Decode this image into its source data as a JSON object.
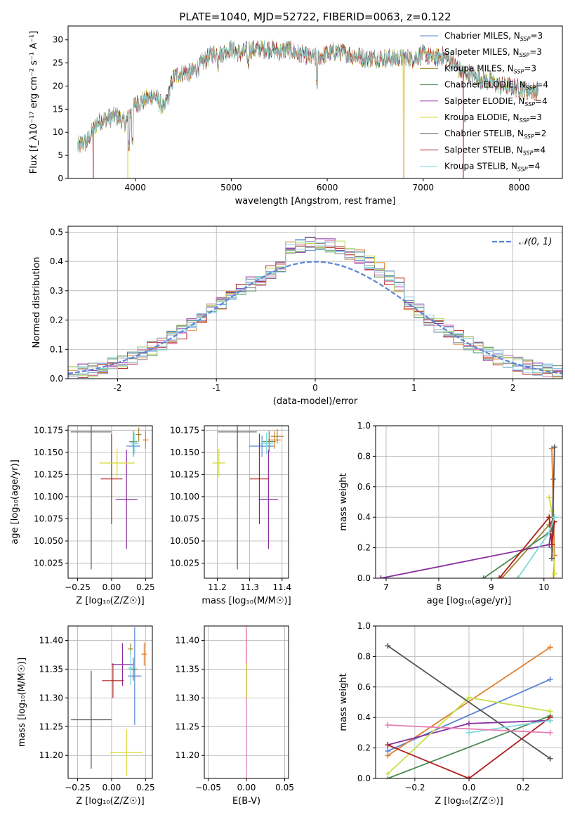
{
  "figure": {
    "title": "PLATE=1040, MJD=52722, FIBERID=0063, z=0.122"
  },
  "colors": {
    "models": [
      "#5b85d5",
      "#e0802f",
      "#a0862f",
      "#4b8a55",
      "#8a2fa0",
      "#d8da2f",
      "#555555",
      "#b01e1e",
      "#7fd8dd"
    ],
    "hist": [
      "#5b85d5",
      "#e0802f",
      "#4b8a55",
      "#b01e1e",
      "#8a2fa0",
      "#e57fb5",
      "#b5dc5a",
      "#7fd8dd",
      "#8a8a8a",
      "#9ac7e0"
    ],
    "normal_curve": "#5b85d5"
  },
  "legend_spectrum": [
    {
      "label": "Chabrier MILES, N",
      "sub": "SSP",
      "tail": "=3",
      "color": "#5b85d5"
    },
    {
      "label": "Salpeter MILES, N",
      "sub": "SSP",
      "tail": "=3",
      "color": "#e0802f"
    },
    {
      "label": "Kroupa MILES, N",
      "sub": "SSP",
      "tail": "=3",
      "color": "#a0862f"
    },
    {
      "label": "Chabrier ELODIE, N",
      "sub": "SSP",
      "tail": "=4",
      "color": "#4b8a55"
    },
    {
      "label": "Salpeter ELODIE, N",
      "sub": "SSP",
      "tail": "=4",
      "color": "#8a2fa0"
    },
    {
      "label": "Kroupa ELODIE, N",
      "sub": "SSP",
      "tail": "=3",
      "color": "#d8da2f"
    },
    {
      "label": "Chabrier STELIB, N",
      "sub": "SSP",
      "tail": "=2",
      "color": "#555555"
    },
    {
      "label": "Salpeter STELIB, N",
      "sub": "SSP",
      "tail": "=4",
      "color": "#b01e1e"
    },
    {
      "label": "Kroupa STELIB, N",
      "sub": "SSP",
      "tail": "=4",
      "color": "#7fd8dd"
    }
  ],
  "legend_hist": {
    "label": "𝒩(0, 1)"
  },
  "chart_data": [
    {
      "id": "spectrum",
      "type": "line",
      "xlabel": "wavelength [Angstrom, rest frame]",
      "ylabel": "Flux [f_λ10⁻¹⁷ erg cm⁻² s⁻¹ A⁻¹]",
      "xlim": [
        3300,
        8450
      ],
      "ylim": [
        0,
        33
      ],
      "xticks": [
        4000,
        5000,
        6000,
        7000,
        8000
      ],
      "yticks": [
        0,
        5,
        10,
        15,
        20,
        25,
        30
      ],
      "envelope_x": [
        3400,
        3500,
        3600,
        3700,
        3800,
        3900,
        4000,
        4100,
        4200,
        4300,
        4400,
        4500,
        4600,
        4700,
        4800,
        4900,
        5000,
        5100,
        5200,
        5300,
        5400,
        5500,
        5600,
        5700,
        5800,
        5900,
        6000,
        6100,
        6200,
        6300,
        6400,
        6500,
        6600,
        6700,
        6800,
        6900,
        7000,
        7100,
        7200,
        7300,
        7400,
        7500,
        7600,
        7700,
        7800,
        7900,
        8000,
        8100,
        8200
      ],
      "envelope_y": [
        7,
        8,
        12,
        13,
        13.5,
        12,
        16,
        17,
        18,
        15,
        22,
        23,
        23,
        25,
        27,
        27,
        28,
        27,
        28,
        28,
        28,
        27.5,
        28,
        27,
        26.5,
        26,
        27,
        27.5,
        27,
        26.5,
        26,
        26,
        26,
        26,
        26,
        26,
        27,
        26,
        26.5,
        25.5,
        23,
        22.5,
        21.5,
        21,
        20,
        20,
        19.5,
        19,
        19
      ]
    },
    {
      "id": "residual-hist",
      "type": "bar",
      "xlabel": "(data-model)/error",
      "ylabel": "Normed distribution",
      "xlim": [
        -2.5,
        2.5
      ],
      "ylim": [
        0,
        0.52
      ],
      "xticks": [
        -2,
        -1,
        0,
        1,
        2
      ],
      "yticks": [
        0.0,
        0.1,
        0.2,
        0.3,
        0.4,
        0.5
      ],
      "bin_width": 0.1,
      "series_name": "𝒩(0, 1)"
    },
    {
      "id": "age-vs-Z",
      "type": "scatter",
      "xlabel": "Z [log₁₀(Z/Z☉)]",
      "ylabel": "age  [log₁₀(age/yr)]",
      "xlim": [
        -0.32,
        0.3
      ],
      "ylim": [
        10.008,
        10.18
      ],
      "xticks": [
        -0.25,
        0.0,
        0.25
      ],
      "xticklabels": [
        "−0.25",
        "0.00",
        "0.25"
      ],
      "yticks": [
        10.025,
        10.05,
        10.075,
        10.1,
        10.125,
        10.15,
        10.175
      ],
      "points": [
        {
          "x": 0.16,
          "y": 10.157,
          "xerr": 0.05,
          "yerr": 0.012
        },
        {
          "x": 0.25,
          "y": 10.164,
          "xerr": 0.02,
          "yerr": 0.01
        },
        {
          "x": 0.2,
          "y": 10.17,
          "xerr": 0.02,
          "yerr": 0.008
        },
        {
          "x": 0.16,
          "y": 10.162,
          "xerr": 0.03,
          "yerr": 0.012
        },
        {
          "x": 0.11,
          "y": 10.097,
          "xerr": 0.08,
          "yerr": 0.056
        },
        {
          "x": 0.17,
          "y": 10.16,
          "xerr": 0.03,
          "yerr": 0.012
        },
        {
          "x": -0.15,
          "y": 10.173,
          "xerr": 0.15,
          "yerr": 0.155
        },
        {
          "x": 0.0,
          "y": 10.12,
          "xerr": 0.08,
          "yerr": 0.051
        },
        {
          "x": 0.04,
          "y": 10.138,
          "xerr": 0.13,
          "yerr": 0.016
        }
      ]
    },
    {
      "id": "age-vs-mass",
      "type": "scatter",
      "xlabel": "mass [log₁₀(M/M☉)]",
      "ylabel": "",
      "xlim": [
        11.16,
        11.42
      ],
      "ylim": [
        10.008,
        10.18
      ],
      "xticks": [
        11.2,
        11.3,
        11.4
      ],
      "yticks": [
        10.025,
        10.05,
        10.075,
        10.1,
        10.125,
        10.15,
        10.175
      ],
      "points": [
        {
          "x": 11.338,
          "y": 10.157,
          "xerr": 0.04,
          "yerr": 0.012
        },
        {
          "x": 11.376,
          "y": 10.164,
          "xerr": 0.02,
          "yerr": 0.01
        },
        {
          "x": 11.385,
          "y": 10.168,
          "xerr": 0.02,
          "yerr": 0.008
        },
        {
          "x": 11.36,
          "y": 10.162,
          "xerr": 0.02,
          "yerr": 0.012
        },
        {
          "x": 11.358,
          "y": 10.097,
          "xerr": 0.03,
          "yerr": 0.056
        },
        {
          "x": 11.352,
          "y": 10.16,
          "xerr": 0.02,
          "yerr": 0.012
        },
        {
          "x": 11.262,
          "y": 10.173,
          "xerr": 0.06,
          "yerr": 0.155
        },
        {
          "x": 11.33,
          "y": 10.12,
          "xerr": 0.03,
          "yerr": 0.051
        },
        {
          "x": 11.205,
          "y": 10.138,
          "xerr": 0.02,
          "yerr": 0.016
        }
      ]
    },
    {
      "id": "weight-vs-age",
      "type": "line",
      "xlabel": "age  [log₁₀(age/yr)]",
      "ylabel": "mass weight",
      "xlim": [
        6.8,
        10.35
      ],
      "ylim": [
        0,
        1
      ],
      "xticks": [
        7,
        8,
        9,
        10
      ],
      "yticks": [
        0.0,
        0.2,
        0.4,
        0.6,
        0.8,
        1.0
      ],
      "series": [
        {
          "x": [
            10.18,
            10.15,
            10.2
          ],
          "y": [
            0.65,
            0.2,
            0.15
          ]
        },
        {
          "x": [
            10.15,
            10.2,
            10.18
          ],
          "y": [
            0.85,
            0.15,
            0.0
          ]
        },
        {
          "x": [
            9.2,
            10.1,
            10.2
          ],
          "y": [
            0.0,
            0.35,
            0.4
          ]
        },
        {
          "x": [
            8.85,
            10.1,
            10.2
          ],
          "y": [
            0.0,
            0.3,
            0.4
          ]
        },
        {
          "x": [
            6.9,
            10.1,
            10.15,
            10.2
          ],
          "y": [
            0.0,
            0.22,
            0.36,
            0.4
          ]
        },
        {
          "x": [
            10.1,
            10.15,
            10.2
          ],
          "y": [
            0.53,
            0.44,
            0.03
          ]
        },
        {
          "x": [
            10.15,
            10.2
          ],
          "y": [
            0.13,
            0.86
          ]
        },
        {
          "x": [
            9.15,
            10.1,
            10.15,
            10.2
          ],
          "y": [
            0.0,
            0.4,
            0.22,
            0.37
          ]
        },
        {
          "x": [
            9.5,
            10.1,
            10.2
          ],
          "y": [
            0.0,
            0.3,
            0.4
          ]
        }
      ]
    },
    {
      "id": "mass-vs-Z",
      "type": "scatter",
      "xlabel": "Z [log₁₀(Z/Z☉)]",
      "ylabel": "mass [log₁₀(M/M☉)]",
      "xlim": [
        -0.32,
        0.3
      ],
      "ylim": [
        11.16,
        11.425
      ],
      "xticks": [
        -0.25,
        0.0,
        0.25
      ],
      "xticklabels": [
        "−0.25",
        "0.00",
        "0.25"
      ],
      "yticks": [
        11.2,
        11.25,
        11.3,
        11.35,
        11.4
      ],
      "points": [
        {
          "x": 0.17,
          "y": 11.338,
          "xerr": 0.05,
          "yerr": 0.085
        },
        {
          "x": 0.24,
          "y": 11.376,
          "xerr": 0.02,
          "yerr": 0.02
        },
        {
          "x": 0.14,
          "y": 11.385,
          "xerr": 0.02,
          "yerr": 0.01
        },
        {
          "x": 0.16,
          "y": 11.35,
          "xerr": 0.03,
          "yerr": 0.02
        },
        {
          "x": 0.08,
          "y": 11.358,
          "xerr": 0.08,
          "yerr": 0.037
        },
        {
          "x": 0.14,
          "y": 11.352,
          "xerr": 0.02,
          "yerr": 0.03
        },
        {
          "x": -0.15,
          "y": 11.262,
          "xerr": 0.15,
          "yerr": 0.085
        },
        {
          "x": 0.01,
          "y": 11.33,
          "xerr": 0.08,
          "yerr": 0.03
        },
        {
          "x": 0.11,
          "y": 11.205,
          "xerr": 0.12,
          "yerr": 0.04
        }
      ]
    },
    {
      "id": "mass-vs-EBV",
      "type": "scatter",
      "xlabel": "E(B-V)",
      "ylabel": "",
      "xlim": [
        -0.055,
        0.055
      ],
      "ylim": [
        11.16,
        11.425
      ],
      "xticks": [
        -0.05,
        0.0,
        0.05
      ],
      "xticklabels": [
        "−0.05",
        "0.00",
        "0.05"
      ],
      "yticks": [
        11.2,
        11.25,
        11.3,
        11.35,
        11.4
      ],
      "points": [
        {
          "x": 0.0,
          "y": 11.26,
          "xerr": 0.0,
          "yerr": 0.09
        },
        {
          "x": 0.0,
          "y": 11.36,
          "xerr": 0.0,
          "yerr": 0.06
        },
        {
          "x": 0.0,
          "y": 11.3,
          "xerr": 0.0,
          "yerr": 0.14
        },
        {
          "x": 0.0,
          "y": 11.33,
          "xerr": 0.0,
          "yerr": 0.03
        }
      ]
    },
    {
      "id": "weight-vs-Z",
      "type": "line",
      "xlabel": "Z [log₁₀(Z/Z☉)]",
      "ylabel": "mass weight",
      "xlim": [
        -0.345,
        0.345
      ],
      "ylim": [
        0,
        1
      ],
      "xticks": [
        -0.2,
        0.0,
        0.2
      ],
      "xticklabels": [
        "−0.2",
        "0.0",
        "0.2"
      ],
      "yticks": [
        0.0,
        0.2,
        0.4,
        0.6,
        0.8,
        1.0
      ],
      "series": [
        {
          "x": [
            -0.3,
            0.3
          ],
          "y": [
            0.18,
            0.65
          ],
          "color": "#5b85d5"
        },
        {
          "x": [
            -0.3,
            0.3
          ],
          "y": [
            0.15,
            0.86
          ],
          "color": "#e0802f"
        },
        {
          "x": [
            -0.3,
            0.3
          ],
          "y": [
            0.0,
            0.41
          ],
          "color": "#4b8a55"
        },
        {
          "x": [
            -0.3,
            0.0,
            0.3
          ],
          "y": [
            0.22,
            0.36,
            0.38
          ],
          "color": "#8a2fa0"
        },
        {
          "x": [
            -0.3,
            0.0,
            0.3
          ],
          "y": [
            0.03,
            0.53,
            0.44
          ],
          "color": "#c7e04a"
        },
        {
          "x": [
            -0.3,
            0.3
          ],
          "y": [
            0.87,
            0.13
          ],
          "color": "#555555"
        },
        {
          "x": [
            -0.3,
            0.0,
            0.3
          ],
          "y": [
            0.22,
            0.0,
            0.4
          ],
          "color": "#b01e1e"
        },
        {
          "x": [
            0.0,
            0.3
          ],
          "y": [
            0.3,
            0.38
          ],
          "color": "#7fd8dd"
        },
        {
          "x": [
            -0.3,
            0.3
          ],
          "y": [
            0.35,
            0.3
          ],
          "color": "#e57fb5"
        }
      ]
    }
  ]
}
